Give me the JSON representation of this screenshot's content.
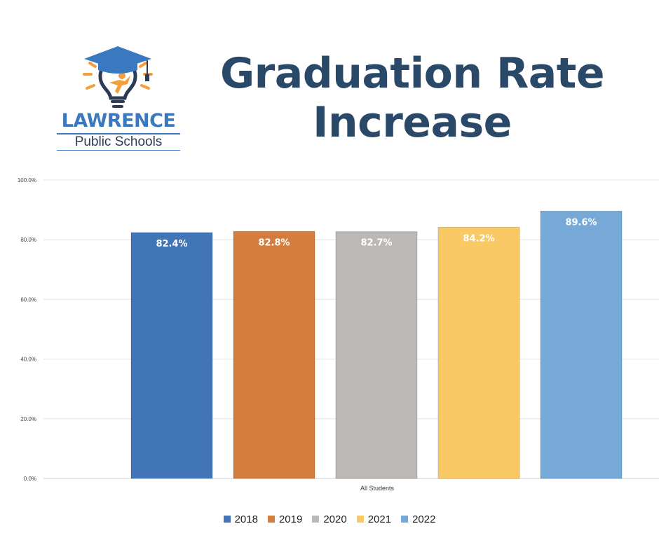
{
  "logo": {
    "name": "LAWRENCE",
    "subtitle": "Public Schools"
  },
  "title_line1": "Graduation Rate",
  "title_line2": "Increase",
  "chart_data": {
    "type": "bar",
    "categories": [
      "All Students"
    ],
    "series": [
      {
        "name": "2018",
        "values": [
          82.4
        ],
        "label": "82.4%",
        "color": "#4274b8"
      },
      {
        "name": "2019",
        "values": [
          82.8
        ],
        "label": "82.8%",
        "color": "#d57d3f"
      },
      {
        "name": "2020",
        "values": [
          82.7
        ],
        "label": "82.7%",
        "color": "#bcb8b5"
      },
      {
        "name": "2021",
        "values": [
          84.2
        ],
        "label": "84.2%",
        "color": "#f8c965"
      },
      {
        "name": "2022",
        "values": [
          89.6
        ],
        "label": "89.6%",
        "color": "#76a9d8"
      }
    ],
    "yticks": [
      "0.0%",
      "20.0%",
      "40.0%",
      "60.0%",
      "80.0%",
      "100.0%"
    ],
    "ylim": [
      0,
      100
    ],
    "grid": true,
    "legend": "bottom"
  }
}
